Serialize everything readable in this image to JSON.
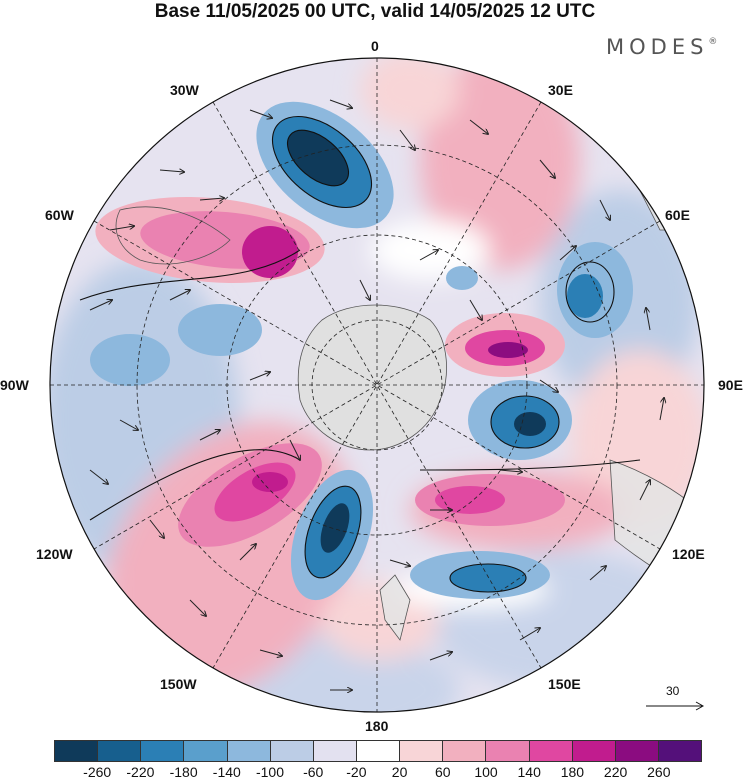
{
  "title": "Base 11/05/2025 00 UTC, valid 14/05/2025 12 UTC",
  "brand": {
    "text": "MODES",
    "mark": "®"
  },
  "map": {
    "projection": "south-polar-stereographic",
    "longitude_labels": [
      "0",
      "30E",
      "60E",
      "90E",
      "120E",
      "150E",
      "180",
      "150W",
      "120W",
      "90W",
      "60W",
      "30W"
    ],
    "gridlines": "dashed",
    "field_colors": {
      "land": "#e4e4e4",
      "antarctica": "#e0e0e0",
      "coast": "#555555"
    }
  },
  "reference_vector": {
    "label": "30"
  },
  "colorbar": {
    "ticks": [
      "-260",
      "-220",
      "-180",
      "-140",
      "-100",
      "-60",
      "-20",
      "20",
      "60",
      "100",
      "140",
      "180",
      "220",
      "260"
    ],
    "colors": [
      "#0f3a5a",
      "#175f8e",
      "#2b7fb5",
      "#5a9fcc",
      "#8db8dd",
      "#bccde6",
      "#e3e1f0",
      "#ffffff",
      "#f8d5d7",
      "#f2b0bf",
      "#ea82b1",
      "#e047a1",
      "#c11c8e",
      "#8b0c80",
      "#54107a"
    ]
  }
}
